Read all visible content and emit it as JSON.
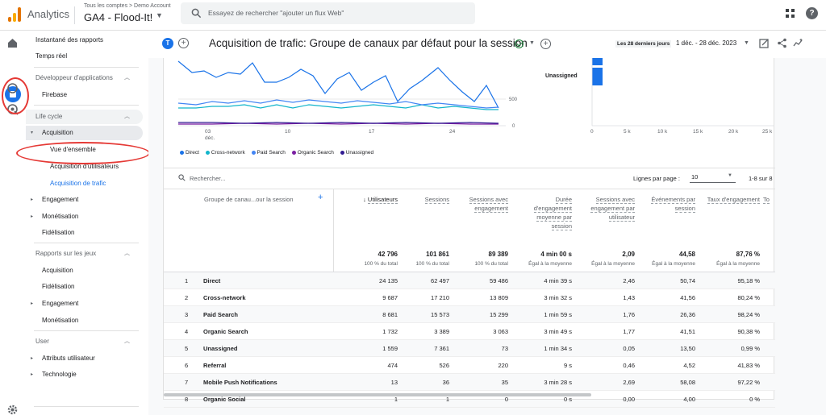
{
  "topbar": {
    "app_title": "Analytics",
    "account_crumb": "Tous les comptes > Demo Account",
    "account_name": "GA4 - Flood-It!",
    "search_placeholder": "Essayez de rechercher \"ajouter un flux Web\""
  },
  "sidebar": {
    "items": [
      {
        "label": "Instantané des rapports"
      },
      {
        "label": "Temps réel"
      },
      {
        "label": "Développeur d'applications"
      },
      {
        "label": "Firebase"
      },
      {
        "label": "Life cycle"
      },
      {
        "label": "Acquisition"
      },
      {
        "label": "Vue d'ensemble"
      },
      {
        "label": "Acquisition d'utilisateurs"
      },
      {
        "label": "Acquisition de trafic"
      },
      {
        "label": "Engagement"
      },
      {
        "label": "Monétisation"
      },
      {
        "label": "Fidélisation"
      },
      {
        "label": "Rapports sur les jeux"
      },
      {
        "label": "Acquisition"
      },
      {
        "label": "Fidélisation"
      },
      {
        "label": "Engagement"
      },
      {
        "label": "Monétisation"
      },
      {
        "label": "User"
      },
      {
        "label": "Attributs utilisateur"
      },
      {
        "label": "Technologie"
      }
    ]
  },
  "report": {
    "avatar_letter": "T",
    "title": "Acquisition de trafic: Groupe de canaux par défaut pour la session",
    "date_label": "Les 28 derniers jours",
    "date_range": "1 déc. - 28 déc. 2023"
  },
  "chart_data": [
    {
      "type": "line",
      "x": [
        "03 déc.",
        "10",
        "17",
        "24"
      ],
      "y_ticks": [
        "0",
        "500"
      ],
      "series": [
        {
          "name": "Direct"
        },
        {
          "name": "Cross-network"
        },
        {
          "name": "Paid Search"
        },
        {
          "name": "Organic Search"
        },
        {
          "name": "Unassigned"
        }
      ],
      "legend": "bottom",
      "colors": [
        "#1a73e8",
        "#12b5cb",
        "#4285f4",
        "#7b1fa2",
        "#3c1a7a"
      ]
    },
    {
      "type": "bar",
      "orientation": "horizontal",
      "categories": [
        "Unassigned"
      ],
      "x_ticks": [
        "0",
        "5 k",
        "10 k",
        "15 k",
        "20 k",
        "25 k"
      ]
    }
  ],
  "legend": [
    "Direct",
    "Cross-network",
    "Paid Search",
    "Organic Search",
    "Unassigned"
  ],
  "legend_colors": [
    "#1a73e8",
    "#12b5cb",
    "#4285f4",
    "#7b1fa2",
    "#311b92"
  ],
  "line_chart": {
    "x_ticks": [
      "03",
      "10",
      "17",
      "24"
    ],
    "x_sub": "déc.",
    "y_ticks": [
      "500",
      "0"
    ]
  },
  "bar_chart": {
    "category": "Unassigned",
    "x_ticks": [
      "0",
      "5 k",
      "10 k",
      "15 k",
      "20 k",
      "25 k"
    ]
  },
  "table": {
    "search_placeholder": "Rechercher...",
    "rows_per_page_label": "Lignes par page :",
    "rows_per_page": "10",
    "pager": "1-8 sur 8",
    "dimension_header": "Groupe de canau...our la session",
    "columns": [
      {
        "header": "Utilisateurs",
        "total": "42 796",
        "sub": "100 % du total"
      },
      {
        "header": "Sessions",
        "total": "101 861",
        "sub": "100 % du total"
      },
      {
        "header": "Sessions avec engagement",
        "total": "89 389",
        "sub": "100 % du total"
      },
      {
        "header": "Durée d'engagement moyenne par session",
        "total": "4 min 00 s",
        "sub": "Égal à la moyenne"
      },
      {
        "header": "Sessions avec engagement par utilisateur",
        "total": "2,09",
        "sub": "Égal à la moyenne"
      },
      {
        "header": "Événements par session",
        "total": "44,58",
        "sub": "Égal à la moyenne"
      },
      {
        "header": "Taux d'engagement",
        "total": "87,76 %",
        "sub": "Égal à la moyenne"
      },
      {
        "header": "To",
        "total": "",
        "sub": ""
      }
    ],
    "rows": [
      {
        "idx": "1",
        "name": "Direct",
        "cells": [
          "24 135",
          "62 497",
          "59 486",
          "4 min 39 s",
          "2,46",
          "50,74",
          "95,18 %"
        ]
      },
      {
        "idx": "2",
        "name": "Cross-network",
        "cells": [
          "9 687",
          "17 210",
          "13 809",
          "3 min 32 s",
          "1,43",
          "41,56",
          "80,24 %"
        ]
      },
      {
        "idx": "3",
        "name": "Paid Search",
        "cells": [
          "8 681",
          "15 573",
          "15 299",
          "1 min 59 s",
          "1,76",
          "26,36",
          "98,24 %"
        ]
      },
      {
        "idx": "4",
        "name": "Organic Search",
        "cells": [
          "1 732",
          "3 389",
          "3 063",
          "3 min 49 s",
          "1,77",
          "41,51",
          "90,38 %"
        ]
      },
      {
        "idx": "5",
        "name": "Unassigned",
        "cells": [
          "1 559",
          "7 361",
          "73",
          "1 min 34 s",
          "0,05",
          "13,50",
          "0,99 %"
        ]
      },
      {
        "idx": "6",
        "name": "Referral",
        "cells": [
          "474",
          "526",
          "220",
          "9 s",
          "0,46",
          "4,52",
          "41,83 %"
        ]
      },
      {
        "idx": "7",
        "name": "Mobile Push Notifications",
        "cells": [
          "13",
          "36",
          "35",
          "3 min 28 s",
          "2,69",
          "58,08",
          "97,22 %"
        ]
      },
      {
        "idx": "8",
        "name": "Organic Social",
        "cells": [
          "1",
          "1",
          "0",
          "0 s",
          "0,00",
          "4,00",
          "0 %"
        ]
      }
    ]
  }
}
